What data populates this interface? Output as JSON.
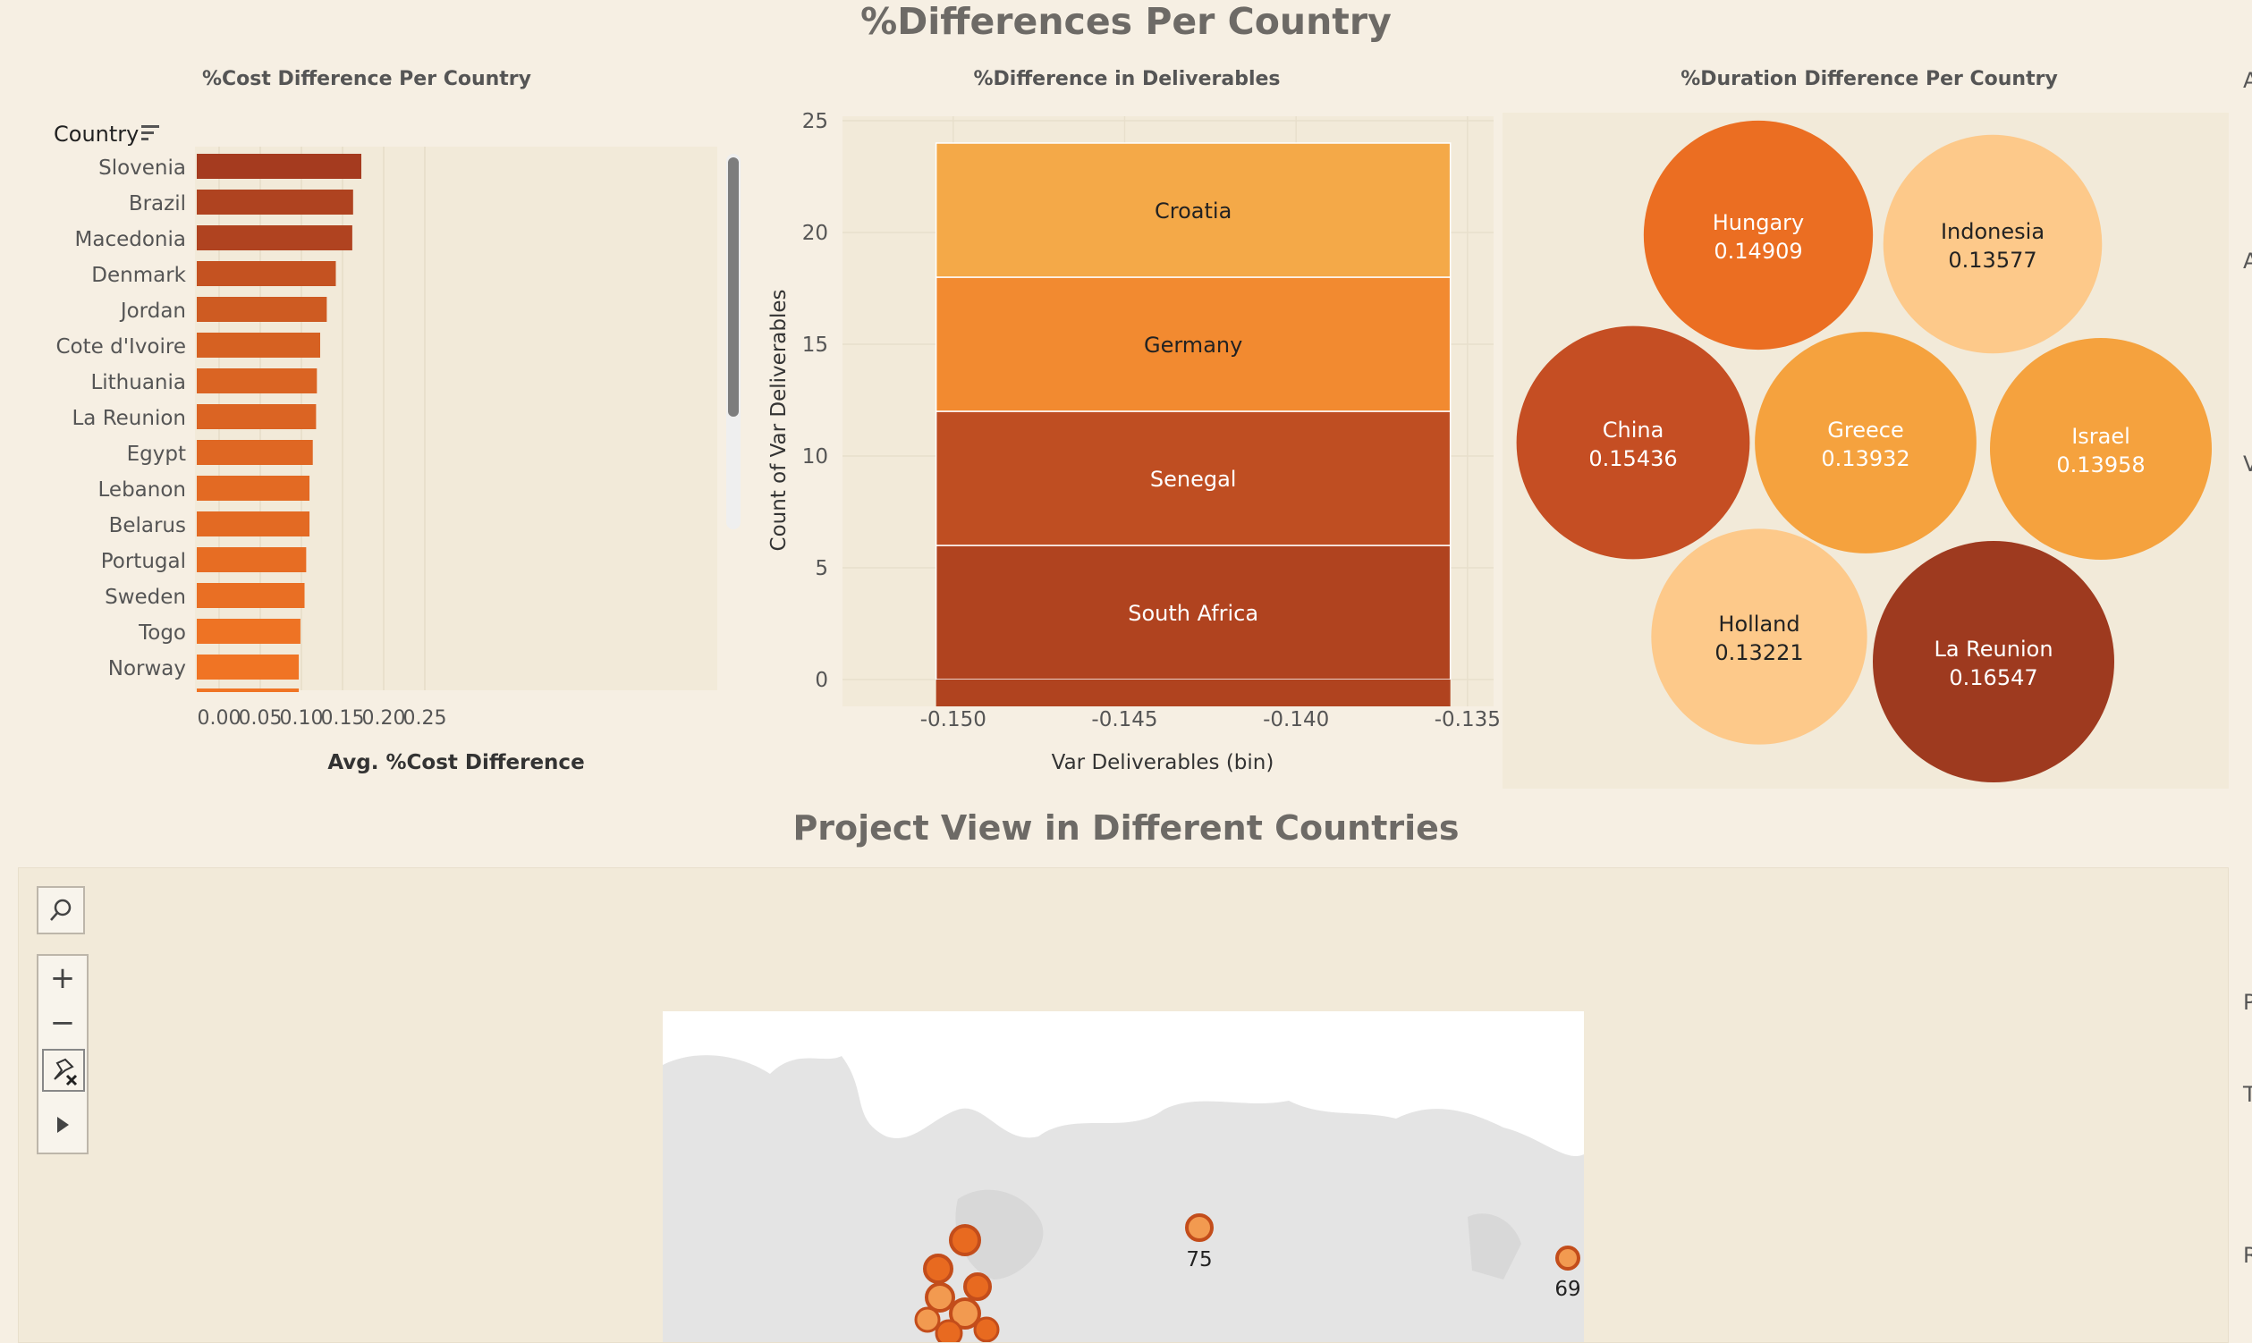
{
  "dashboard": {
    "title": "%Differences Per Country",
    "section2_title": "Project View in Different Countries"
  },
  "colors": {
    "background": "#f6efe3",
    "panel": "#f2ead9",
    "dark": "#9e3a1f",
    "mid": "#e86a20",
    "light": "#fdc98a"
  },
  "chart_data": [
    {
      "type": "bar",
      "title": "%Cost Difference Per Country",
      "orientation": "horizontal",
      "row_header": "Country",
      "xlabel": "Avg. %Cost Difference",
      "xlim": [
        0,
        0.27
      ],
      "xticks": [
        "0.00",
        "0.05",
        "0.10",
        "0.15",
        "0.20",
        "0.25"
      ],
      "categories": [
        "Slovenia",
        "Brazil",
        "Macedonia",
        "Denmark",
        "Jordan",
        "Cote d'Ivoire",
        "Lithuania",
        "La Reunion",
        "Egypt",
        "Lebanon",
        "Belarus",
        "Portugal",
        "Sweden",
        "Togo",
        "Norway"
      ],
      "values": [
        0.2,
        0.19,
        0.189,
        0.169,
        0.158,
        0.15,
        0.146,
        0.145,
        0.141,
        0.137,
        0.137,
        0.133,
        0.131,
        0.126,
        0.124
      ],
      "grid": true
    },
    {
      "type": "bar",
      "title": "%Difference in Deliverables",
      "stacked": true,
      "xlabel": "Var Deliverables (bin)",
      "ylabel": "Count of Var Deliverables",
      "ylim": [
        0,
        25
      ],
      "yticks": [
        "0",
        "5",
        "10",
        "15",
        "20",
        "25"
      ],
      "xticks": [
        "-0.150",
        "-0.145",
        "-0.140",
        "-0.135"
      ],
      "xlim": [
        -0.1525,
        -0.1345
      ],
      "bin": [
        -0.1505,
        -0.1355
      ],
      "series": [
        {
          "name": "South Africa",
          "value": 6,
          "color": "#b0431f"
        },
        {
          "name": "Senegal",
          "value": 6,
          "color": "#bf4e22"
        },
        {
          "name": "Germany",
          "value": 6,
          "color": "#f28a30"
        },
        {
          "name": "Croatia",
          "value": 6,
          "color": "#f4a948"
        }
      ],
      "grid": true
    },
    {
      "type": "bubble",
      "title": "%Duration Difference Per Country",
      "items": [
        {
          "name": "Hungary",
          "label": "0.14909",
          "value": 0.14909,
          "color": "#eb6e22"
        },
        {
          "name": "Indonesia",
          "label": "0.13577",
          "value": 0.13577,
          "color": "#fdc98a"
        },
        {
          "name": "China",
          "label": "0.15436",
          "value": 0.15436,
          "color": "#c54e23"
        },
        {
          "name": "Greece",
          "label": "0.13932",
          "value": 0.13932,
          "color": "#f5a23e"
        },
        {
          "name": "Israel",
          "label": "0.13958",
          "value": 0.13958,
          "color": "#f5a23e"
        },
        {
          "name": "Holland",
          "label": "0.13221",
          "value": 0.13221,
          "color": "#fdc98a"
        },
        {
          "name": "La Reunion",
          "label": "0.16547",
          "value": 0.16547,
          "color": "#9e3a1f"
        }
      ]
    }
  ],
  "map": {
    "labels": [
      "75",
      "69"
    ],
    "controls": [
      "search-icon",
      "zoom-in-icon",
      "zoom-out-icon",
      "pin-icon",
      "play-icon"
    ],
    "zoom_in": "+",
    "zoom_out": "−"
  },
  "edge_letters": [
    "A",
    "A",
    "V",
    "P",
    "T",
    "R"
  ]
}
